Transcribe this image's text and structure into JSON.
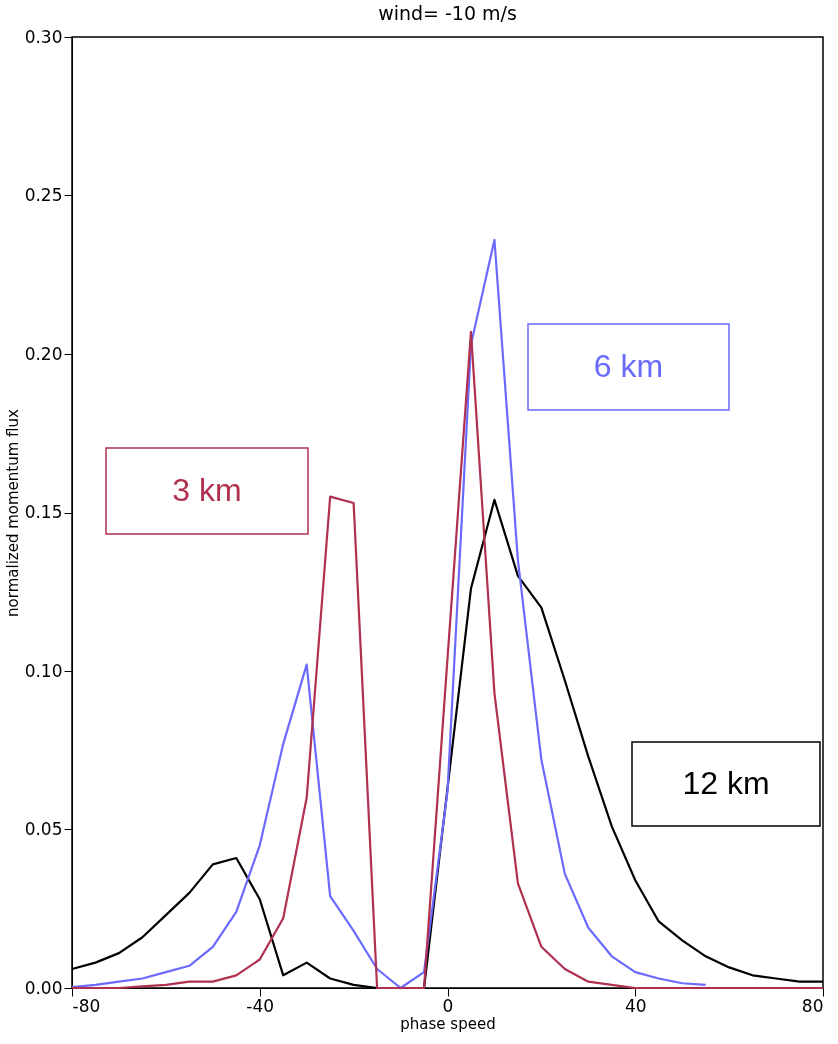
{
  "chart_data": {
    "type": "line",
    "title": "wind= -10 m/s",
    "xlabel": "phase speed",
    "ylabel": "normalized momentum flux",
    "x": [
      -80,
      -75,
      -70,
      -65,
      -60,
      -55,
      -50,
      -45,
      -40,
      -35,
      -30,
      -25,
      -20,
      -15,
      -10,
      -5,
      0,
      5,
      10,
      15,
      20,
      25,
      30,
      35,
      40,
      45,
      50,
      55,
      60,
      65,
      70,
      75,
      80
    ],
    "series": [
      {
        "name": "3 km",
        "color": "#b03050",
        "values": [
          0,
          0,
          0,
          0.0005,
          0.001,
          0.002,
          0.002,
          0.004,
          0.009,
          0.022,
          0.06,
          0.155,
          0.153,
          0,
          0,
          0,
          0.104,
          0.207,
          0.093,
          0.033,
          0.013,
          0.006,
          0.002,
          0.001,
          0,
          0,
          0,
          0,
          0,
          0,
          0,
          0,
          0
        ]
      },
      {
        "name": "6 km",
        "color": "#6a6aff",
        "values": [
          0.0003,
          0.001,
          0.002,
          0.003,
          0.005,
          0.007,
          0.013,
          0.024,
          0.045,
          0.077,
          0.102,
          0.029,
          0.018,
          0.006,
          0,
          0.005,
          0.062,
          0.203,
          0.236,
          0.135,
          0.072,
          0.036,
          0.019,
          0.01,
          0.005,
          0.003,
          0.0015,
          0.001,
          null,
          null,
          null,
          null,
          null
        ]
      },
      {
        "name": "12 km",
        "color": "#000000",
        "values": [
          0.006,
          0.008,
          0.011,
          0.016,
          0.023,
          0.03,
          0.039,
          0.041,
          0.028,
          0.004,
          0.008,
          0.003,
          0.001,
          0,
          0,
          0,
          0.063,
          0.126,
          0.154,
          0.13,
          0.12,
          0.097,
          0.073,
          0.051,
          0.034,
          0.021,
          0.015,
          0.01,
          0.0065,
          0.004,
          0.003,
          0.002,
          0.002
        ]
      }
    ],
    "xlim": [
      -80,
      80
    ],
    "xticks": [
      -80,
      -40,
      0,
      40,
      80
    ],
    "ylim": [
      0,
      0.3
    ],
    "yticks": [
      {
        "value": 0,
        "label": "0.00"
      },
      0.05,
      {
        "value": 0.1,
        "label": "0.10"
      },
      0.15,
      {
        "value": 0.2,
        "label": "0.20"
      },
      0.25,
      {
        "value": 0.3,
        "label": "0.30"
      }
    ],
    "grid": false,
    "legend": false,
    "marker": "none",
    "line_style": "solid"
  }
}
